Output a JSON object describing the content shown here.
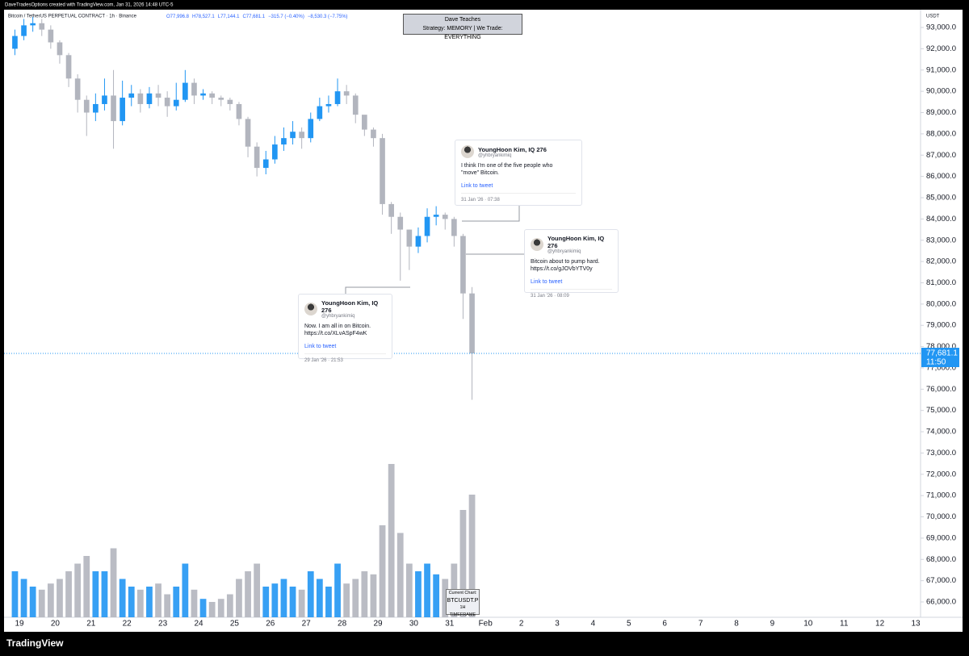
{
  "header": {
    "credit": "DaveTradesOptions created with TradingView.com, Jan 31, 2026 14:48 UTC-5",
    "symbol": "Bitcoin / TetherUS PERPETUAL CONTRACT · 1h · Binance",
    "stats": [
      "O77,996.8",
      "H78,527.1",
      "L77,144.1",
      "C77,681.1",
      "−315.7 (−0.40%)",
      "−8,530.3 (−7.75%)"
    ]
  },
  "chart_data": {
    "type": "candlestick",
    "axis_unit": "USDT",
    "categories": [
      "19",
      "20",
      "21",
      "22",
      "23",
      "24",
      "25",
      "26",
      "27",
      "28",
      "29",
      "30",
      "31",
      "Feb",
      "2",
      "3",
      "4",
      "5",
      "6",
      "7",
      "8",
      "9",
      "10",
      "11",
      "12",
      "13"
    ],
    "open": [
      92000,
      92600,
      93100,
      93200,
      92900,
      92300,
      91700,
      90600,
      89600,
      89000,
      89400,
      89800,
      88600,
      89700,
      89900,
      89400,
      89900,
      89700,
      89300,
      89600,
      90400,
      89800,
      89900,
      89700,
      89600,
      89400,
      88700,
      87400,
      86400,
      86800,
      87500,
      87800,
      88100,
      87800,
      88700,
      89300,
      89400,
      90000,
      89800,
      88900,
      88200,
      87800,
      84700,
      84100,
      83500,
      82700,
      83200,
      84100,
      84200,
      84000,
      83200,
      80500
    ],
    "high": [
      92900,
      93400,
      93500,
      93400,
      93100,
      92400,
      91800,
      90800,
      89800,
      89900,
      90600,
      91000,
      90500,
      90300,
      90100,
      90200,
      90300,
      90000,
      90400,
      91000,
      90600,
      90100,
      90000,
      89800,
      89700,
      89500,
      88800,
      87600,
      87200,
      87900,
      88300,
      88600,
      88300,
      89000,
      89700,
      89800,
      90600,
      90300,
      89900,
      88700,
      88300,
      88000,
      84800,
      84300,
      83500,
      83600,
      84500,
      84600,
      84300,
      84100,
      83300,
      80800
    ],
    "low": [
      91700,
      92400,
      92800,
      92600,
      92000,
      91300,
      90200,
      89000,
      87900,
      88600,
      89100,
      87300,
      88400,
      89300,
      89000,
      89200,
      89300,
      88800,
      89100,
      89500,
      89400,
      89600,
      89400,
      89300,
      89100,
      88400,
      86900,
      86000,
      86100,
      86600,
      87200,
      87500,
      87300,
      87600,
      88600,
      89000,
      89300,
      89400,
      88500,
      87900,
      87400,
      84200,
      83300,
      81100,
      81600,
      82400,
      82900,
      83700,
      83500,
      82700,
      79300,
      75500
    ],
    "close": [
      92600,
      93100,
      93200,
      92900,
      92300,
      91700,
      90600,
      89600,
      89000,
      89400,
      89800,
      88600,
      89700,
      89900,
      89400,
      89900,
      89700,
      89300,
      89600,
      90400,
      89800,
      89900,
      89700,
      89600,
      89400,
      88700,
      87400,
      86400,
      86800,
      87500,
      87800,
      88100,
      87800,
      88700,
      89300,
      89400,
      90000,
      89800,
      88900,
      88200,
      87800,
      84700,
      84100,
      83500,
      82700,
      83200,
      84100,
      84200,
      84000,
      83200,
      80500,
      77681.1
    ],
    "volume": [
      30,
      25,
      20,
      18,
      22,
      25,
      30,
      35,
      40,
      30,
      30,
      45,
      25,
      20,
      18,
      20,
      22,
      15,
      20,
      35,
      18,
      12,
      10,
      12,
      15,
      25,
      30,
      35,
      20,
      22,
      25,
      20,
      18,
      30,
      25,
      20,
      35,
      22,
      25,
      30,
      28,
      60,
      100,
      55,
      35,
      30,
      35,
      28,
      25,
      35,
      70,
      80
    ],
    "up_color": "#2196f3",
    "down_color": "#b2b5be",
    "ylim": [
      65280,
      93760
    ],
    "yticks": [
      {
        "value": 66000,
        "label": "66,000.0"
      },
      {
        "value": 67000,
        "label": "67,000.0"
      },
      {
        "value": 68000,
        "label": "68,000.0"
      },
      {
        "value": 69000,
        "label": "69,000.0"
      },
      {
        "value": 70000,
        "label": "70,000.0"
      },
      {
        "value": 71000,
        "label": "71,000.0"
      },
      {
        "value": 72000,
        "label": "72,000.0"
      },
      {
        "value": 73000,
        "label": "73,000.0"
      },
      {
        "value": 74000,
        "label": "74,000.0"
      },
      {
        "value": 75000,
        "label": "75,000.0"
      },
      {
        "value": 76000,
        "label": "76,000.0"
      },
      {
        "value": 77000,
        "label": "77,000.0"
      },
      {
        "value": 78000,
        "label": "78,000.0"
      },
      {
        "value": 79000,
        "label": "79,000.0"
      },
      {
        "value": 80000,
        "label": "80,000.0"
      },
      {
        "value": 81000,
        "label": "81,000.0"
      },
      {
        "value": 82000,
        "label": "82,000.0"
      },
      {
        "value": 83000,
        "label": "83,000.0"
      },
      {
        "value": 84000,
        "label": "84,000.0"
      },
      {
        "value": 85000,
        "label": "85,000.0"
      },
      {
        "value": 86000,
        "label": "86,000.0"
      },
      {
        "value": 87000,
        "label": "87,000.0"
      },
      {
        "value": 88000,
        "label": "88,000.0"
      },
      {
        "value": 89000,
        "label": "89,000.0"
      },
      {
        "value": 90000,
        "label": "90,000.0"
      },
      {
        "value": 91000,
        "label": "91,000.0"
      },
      {
        "value": 92000,
        "label": "92,000.0"
      },
      {
        "value": 93000,
        "label": "93,000.0"
      }
    ],
    "last_label": "77,681.1",
    "countdown": "11:50"
  },
  "overlay": {
    "title": "Dave Teaches",
    "subtitle": "Strategy: MEMORY | We Trade: EVERYTHING"
  },
  "tweets": [
    {
      "name": "YoungHoon Kim, IQ 276",
      "handle": "@yhbryankimiq",
      "text": "Now. I am all in on Bitcoin. https://t.co/XLvASpF4wK",
      "link": "Link to tweet",
      "date": "29 Jan '26 · 21:53"
    },
    {
      "name": "YoungHoon Kim, IQ 276",
      "handle": "@yhbryankimiq",
      "text": "I think I'm one of the five people who \"move\" Bitcoin.",
      "link": "Link to tweet",
      "date": "31 Jan '26 · 07:38"
    },
    {
      "name": "YoungHoon Kim, IQ 276",
      "handle": "@yhbryankimiq",
      "text": "Bitcoin about to pump hard. https://t.co/gJOVbYTV0y",
      "link": "Link to tweet",
      "date": "31 Jan '26 · 08:09"
    }
  ],
  "current_chart": {
    "label": "Current Chart:",
    "symbol": "BTCUSDT.P",
    "timeframe": "1H TIMEFRAME"
  },
  "footer": {
    "brand": "TradingView"
  }
}
